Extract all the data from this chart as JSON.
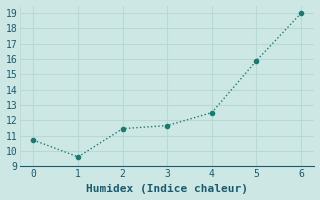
{
  "x": [
    0,
    1,
    2,
    3,
    4,
    5,
    6
  ],
  "y": [
    10.7,
    9.6,
    11.45,
    11.65,
    12.5,
    15.9,
    19.0
  ],
  "line_color": "#1a7a6e",
  "marker_color": "#1a7a6e",
  "bg_color": "#cde8e4",
  "grid_color": "#b8d8d4",
  "xlabel": "Humidex (Indice chaleur)",
  "ylim": [
    9,
    19.5
  ],
  "xlim": [
    -0.3,
    6.3
  ],
  "yticks": [
    9,
    10,
    11,
    12,
    13,
    14,
    15,
    16,
    17,
    18,
    19
  ],
  "xticks": [
    0,
    1,
    2,
    3,
    4,
    5,
    6
  ],
  "font_color": "#1a5a6e",
  "font_family": "monospace",
  "font_size_label": 8,
  "font_size_tick": 7,
  "linewidth": 1.0,
  "markersize": 3
}
